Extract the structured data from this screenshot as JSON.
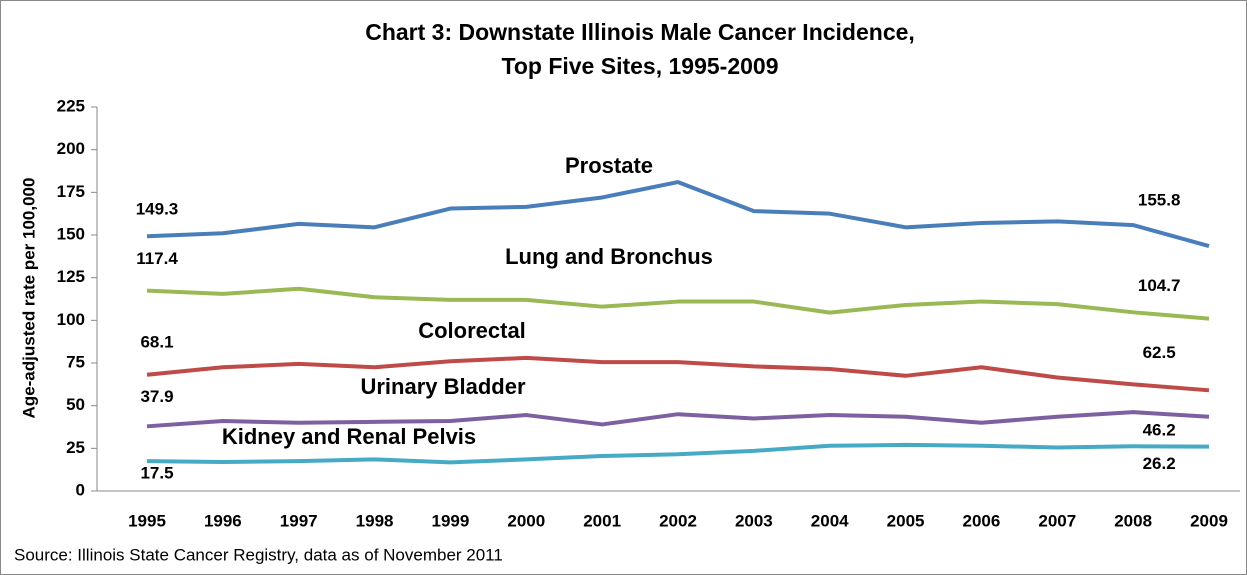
{
  "chart_data": {
    "type": "line",
    "title": "Chart 3: Downstate Illinois Male Cancer Incidence,",
    "subtitle": "Top Five Sites,  1995-2009",
    "y_label": "Age-adjusted rate per 100,000",
    "source": "Source: Illinois State Cancer Registry, data as of November 2011",
    "categories": [
      "1995",
      "1996",
      "1997",
      "1998",
      "1999",
      "2000",
      "2001",
      "2002",
      "2003",
      "2004",
      "2005",
      "2006",
      "2007",
      "2008",
      "2009"
    ],
    "ylim": [
      0,
      225
    ],
    "yticks": [
      0,
      25,
      50,
      75,
      100,
      125,
      150,
      175,
      200,
      225
    ],
    "grid": false,
    "series": [
      {
        "name": "Prostate",
        "color": "#4a7ebb",
        "values": [
          149.3,
          151,
          156.5,
          154.5,
          165.5,
          166.5,
          172,
          181,
          164,
          162.5,
          154.5,
          157,
          158,
          155.8,
          143.5
        ],
        "value_labels": [
          "149.3",
          null,
          null,
          null,
          null,
          null,
          null,
          null,
          null,
          null,
          null,
          null,
          null,
          "155.8",
          null
        ]
      },
      {
        "name": "Lung and Bronchus",
        "color": "#98b954",
        "values": [
          117.4,
          115.5,
          118.5,
          113.5,
          112,
          112,
          108,
          111,
          111,
          104.5,
          109,
          111,
          109.5,
          104.7,
          101
        ],
        "value_labels": [
          "117.4",
          null,
          null,
          null,
          null,
          null,
          null,
          null,
          null,
          null,
          null,
          null,
          null,
          "104.7",
          null
        ]
      },
      {
        "name": "Colorectal",
        "color": "#be4b48",
        "values": [
          68.1,
          72.5,
          74.5,
          72.5,
          76,
          78,
          75.5,
          75.5,
          73,
          71.5,
          67.5,
          72.5,
          66.5,
          62.5,
          59
        ],
        "value_labels": [
          "68.1",
          null,
          null,
          null,
          null,
          null,
          null,
          null,
          null,
          null,
          null,
          null,
          null,
          "62.5",
          null
        ]
      },
      {
        "name": "Urinary Bladder",
        "color": "#7d60a0",
        "values": [
          37.9,
          41,
          40,
          40.5,
          41,
          44.5,
          39,
          45,
          42.5,
          44.5,
          43.5,
          40,
          43.5,
          46.2,
          43.5
        ],
        "value_labels": [
          "37.9",
          null,
          null,
          null,
          null,
          null,
          null,
          null,
          null,
          null,
          null,
          null,
          null,
          "46.2",
          null
        ]
      },
      {
        "name": "Kidney and Renal Pelvis",
        "color": "#46aac5",
        "values": [
          17.5,
          17,
          17.5,
          18.5,
          16.8,
          18.5,
          20.5,
          21.5,
          23.5,
          26.5,
          27,
          26.5,
          25.5,
          26.2,
          26
        ],
        "value_labels": [
          "17.5",
          null,
          null,
          null,
          null,
          null,
          null,
          null,
          null,
          null,
          null,
          null,
          null,
          "26.2",
          null
        ]
      }
    ]
  }
}
